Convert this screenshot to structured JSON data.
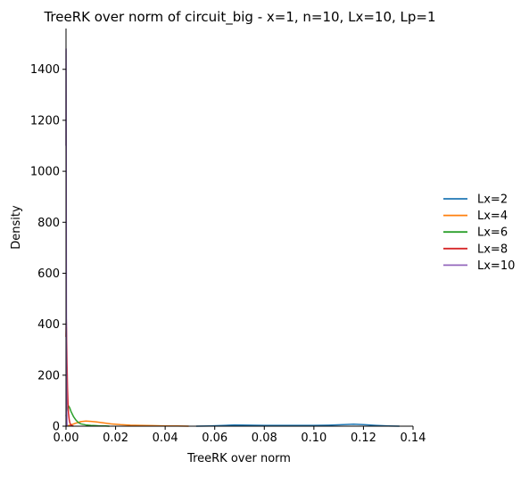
{
  "chart_data": {
    "type": "line",
    "title": "TreeRK over norm of circuit_big - x=1, n=10, Lx=10, Lp=1",
    "xlabel": "TreeRK over norm",
    "ylabel": "Density",
    "xlim": [
      0,
      0.14
    ],
    "ylim": [
      0,
      1560
    ],
    "xticks": [
      "0.00",
      "0.02",
      "0.04",
      "0.06",
      "0.08",
      "0.10",
      "0.12",
      "0.14"
    ],
    "yticks": [
      "0",
      "200",
      "400",
      "600",
      "800",
      "1000",
      "1200",
      "1400"
    ],
    "grid": false,
    "legend_position": "right",
    "series": [
      {
        "name": "Lx=2",
        "color": "#1f77b4",
        "x": [
          0.0525,
          0.058,
          0.064,
          0.068,
          0.074,
          0.08,
          0.088,
          0.095,
          0.1,
          0.106,
          0.112,
          0.116,
          0.12,
          0.125,
          0.13,
          0.1345
        ],
        "y": [
          0,
          1,
          3,
          5,
          4,
          3,
          3,
          3,
          3,
          4,
          6,
          8,
          6,
          3,
          1,
          0
        ]
      },
      {
        "name": "Lx=4",
        "color": "#ff7f0e",
        "x": [
          0.0,
          0.002,
          0.004,
          0.006,
          0.008,
          0.01,
          0.012,
          0.015,
          0.018,
          0.022,
          0.026,
          0.03,
          0.035,
          0.04,
          0.045,
          0.0495
        ],
        "y": [
          0,
          5,
          12,
          18,
          20,
          19,
          17,
          13,
          9,
          6,
          4,
          3,
          2,
          1,
          1,
          0
        ]
      },
      {
        "name": "Lx=6",
        "color": "#2ca02c",
        "x": [
          0.0,
          0.0005,
          0.001,
          0.0015,
          0.002,
          0.003,
          0.004,
          0.005,
          0.006,
          0.008,
          0.01,
          0.012,
          0.014,
          0.016,
          0.0175
        ],
        "y": [
          40,
          70,
          80,
          72,
          58,
          38,
          24,
          14,
          9,
          5,
          3,
          2,
          1,
          1,
          0
        ]
      },
      {
        "name": "Lx=8",
        "color": "#d62728",
        "x": [
          0.0,
          0.0001,
          0.0002,
          0.0004,
          0.0006,
          0.0008,
          0.001,
          0.0013,
          0.0016,
          0.002,
          0.0025,
          0.003
        ],
        "y": [
          350,
          420,
          380,
          250,
          150,
          90,
          50,
          25,
          12,
          5,
          2,
          0
        ]
      },
      {
        "name": "Lx=10",
        "color": "#9467bd",
        "x": [
          0.0,
          3e-05,
          6e-05,
          0.0001,
          0.00015,
          0.0002,
          0.0003,
          0.0004,
          0.0005
        ],
        "y": [
          1100,
          1480,
          1300,
          900,
          450,
          200,
          60,
          10,
          0
        ]
      }
    ]
  }
}
